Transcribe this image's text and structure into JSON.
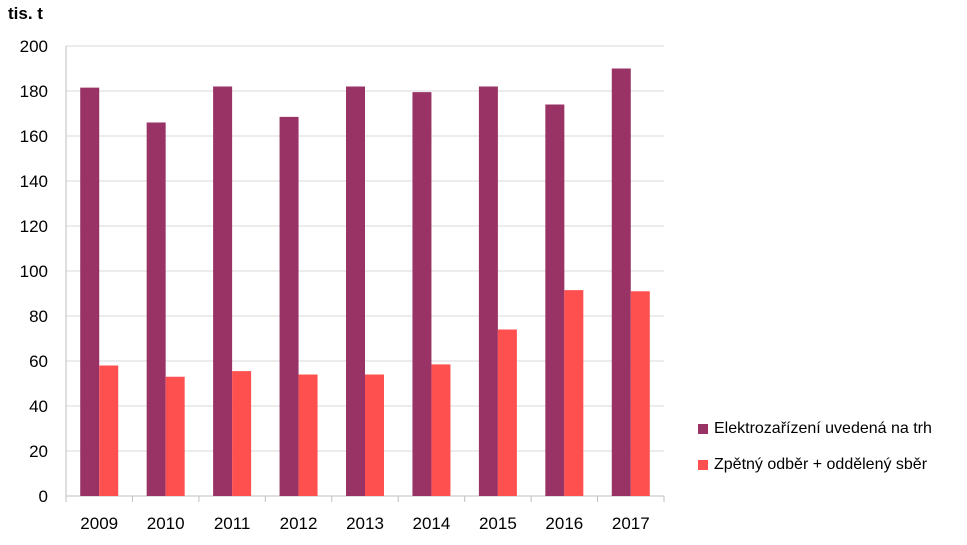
{
  "chart_data": {
    "type": "bar",
    "ylabel": "tis. t",
    "categories": [
      "2009",
      "2010",
      "2011",
      "2012",
      "2013",
      "2014",
      "2015",
      "2016",
      "2017"
    ],
    "ylim": [
      0,
      200
    ],
    "yticks": [
      0,
      20,
      40,
      60,
      80,
      100,
      120,
      140,
      160,
      180,
      200
    ],
    "grid": true,
    "legend_position": "right",
    "series": [
      {
        "name": "Elektrozařízení uvedená na trh",
        "color": "#993366",
        "values": [
          181.5,
          166,
          182,
          168.5,
          182,
          179.5,
          182,
          174,
          190
        ]
      },
      {
        "name": "Zpětný odběr + oddělený sběr",
        "color": "#ff5050",
        "values": [
          58,
          53,
          55.5,
          54,
          54,
          58.5,
          74,
          91.5,
          91
        ]
      }
    ]
  }
}
